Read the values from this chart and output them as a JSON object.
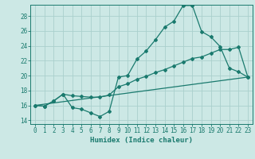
{
  "xlabel": "Humidex (Indice chaleur)",
  "bg_color": "#cce8e5",
  "grid_color": "#aad0cc",
  "line_color": "#1a7a6e",
  "spine_color": "#1a7a6e",
  "xlim": [
    -0.5,
    23.5
  ],
  "ylim": [
    13.5,
    29.5
  ],
  "xticks": [
    0,
    1,
    2,
    3,
    4,
    5,
    6,
    7,
    8,
    9,
    10,
    11,
    12,
    13,
    14,
    15,
    16,
    17,
    18,
    19,
    20,
    21,
    22,
    23
  ],
  "yticks": [
    14,
    16,
    18,
    20,
    22,
    24,
    26,
    28
  ],
  "line1_x": [
    0,
    1,
    2,
    3,
    4,
    5,
    6,
    7,
    8,
    9,
    10,
    11,
    12,
    13,
    14,
    15,
    16,
    17,
    18,
    19,
    20,
    21,
    22,
    23
  ],
  "line1_y": [
    16.0,
    15.9,
    16.6,
    17.5,
    15.7,
    15.5,
    15.0,
    14.5,
    15.2,
    19.8,
    20.0,
    22.2,
    23.3,
    24.8,
    26.5,
    27.3,
    29.4,
    29.4,
    25.9,
    25.2,
    23.9,
    21.0,
    20.5,
    19.8
  ],
  "line2_x": [
    0,
    1,
    2,
    3,
    4,
    5,
    6,
    7,
    8,
    9,
    10,
    11,
    12,
    13,
    14,
    15,
    16,
    17,
    18,
    19,
    20,
    21,
    22,
    23
  ],
  "line2_y": [
    16.0,
    15.9,
    16.6,
    17.5,
    17.3,
    17.2,
    17.1,
    17.1,
    17.4,
    18.5,
    18.9,
    19.5,
    19.9,
    20.4,
    20.8,
    21.3,
    21.8,
    22.3,
    22.5,
    23.0,
    23.5,
    23.5,
    23.8,
    19.8
  ],
  "line3_x": [
    0,
    23
  ],
  "line3_y": [
    16.0,
    19.8
  ],
  "figsize": [
    3.2,
    2.0
  ],
  "dpi": 100,
  "tick_fontsize": 5.5,
  "xlabel_fontsize": 6.5
}
